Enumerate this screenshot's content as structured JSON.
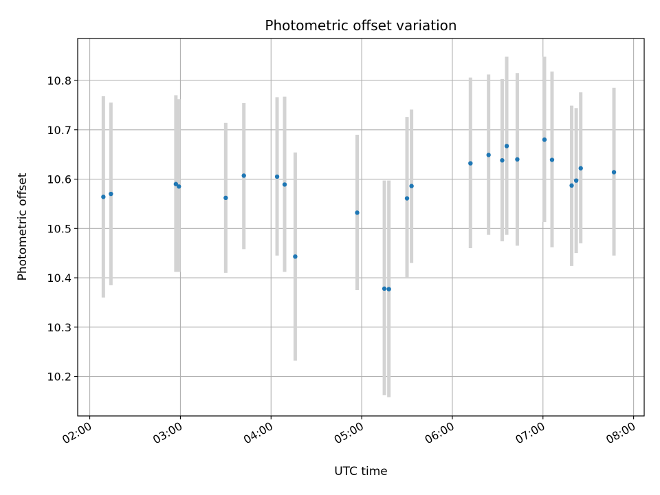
{
  "chart_data": {
    "type": "scatter",
    "title": "Photometric offset variation",
    "xlabel": "UTC time",
    "ylabel": "Photometric offset",
    "x_tick_labels": [
      "02:00",
      "03:00",
      "04:00",
      "05:00",
      "06:00",
      "07:00",
      "08:00"
    ],
    "y_tick_labels": [
      "10.2",
      "10.3",
      "10.4",
      "10.5",
      "10.6",
      "10.7",
      "10.8"
    ],
    "xlim": [
      "01:52",
      "08:07"
    ],
    "ylim": [
      10.12,
      10.885
    ],
    "grid": true,
    "colors": {
      "points": "#1f77b4",
      "error_bars": "#d3d3d3",
      "grid": "#b0b0b0"
    },
    "series": [
      {
        "x": [
          "02:09",
          "02:14",
          "02:57",
          "02:59",
          "03:30",
          "03:42",
          "04:04",
          "04:09",
          "04:16",
          "04:57",
          "05:15",
          "05:18",
          "05:30",
          "05:33",
          "06:12",
          "06:24",
          "06:33",
          "06:36",
          "06:43",
          "07:01",
          "07:06",
          "07:19",
          "07:22",
          "07:25",
          "07:47"
        ],
        "y": [
          10.564,
          10.57,
          10.59,
          10.585,
          10.562,
          10.607,
          10.605,
          10.589,
          10.443,
          10.532,
          10.378,
          10.377,
          10.561,
          10.586,
          10.632,
          10.649,
          10.638,
          10.667,
          10.64,
          10.68,
          10.639,
          10.587,
          10.597,
          10.622,
          10.614
        ],
        "y_lower": [
          10.36,
          10.385,
          10.412,
          10.412,
          10.41,
          10.458,
          10.445,
          10.412,
          10.232,
          10.375,
          10.162,
          10.158,
          10.4,
          10.43,
          10.46,
          10.487,
          10.474,
          10.487,
          10.465,
          10.513,
          10.462,
          10.424,
          10.45,
          10.47,
          10.445
        ],
        "y_upper": [
          10.768,
          10.755,
          10.77,
          10.762,
          10.714,
          10.754,
          10.766,
          10.767,
          10.654,
          10.69,
          10.597,
          10.597,
          10.726,
          10.741,
          10.806,
          10.812,
          10.803,
          10.848,
          10.815,
          10.848,
          10.818,
          10.749,
          10.744,
          10.776,
          10.785
        ]
      }
    ]
  }
}
